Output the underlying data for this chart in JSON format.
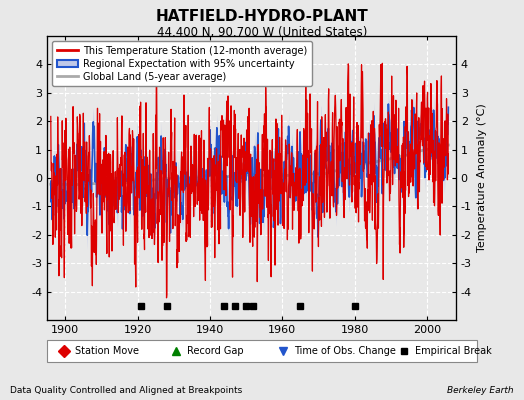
{
  "title": "HATFIELD-HYDRO-PLANT",
  "subtitle": "44.400 N, 90.700 W (United States)",
  "ylabel": "Temperature Anomaly (°C)",
  "xlabel_note": "Data Quality Controlled and Aligned at Breakpoints",
  "credit": "Berkeley Earth",
  "ylim": [
    -5,
    5
  ],
  "xlim": [
    1895,
    2008
  ],
  "xticks": [
    1900,
    1920,
    1940,
    1960,
    1980,
    2000
  ],
  "yticks": [
    -4,
    -3,
    -2,
    -1,
    0,
    1,
    2,
    3,
    4
  ],
  "bg_color": "#e8e8e8",
  "plot_bg_color": "#e8e8e8",
  "red_color": "#dd0000",
  "blue_color": "#2255cc",
  "shade_color": "#c0c8e8",
  "gray_color": "#aaaaaa",
  "grid_color": "#ffffff",
  "empirical_breaks": [
    1921,
    1928,
    1944,
    1947,
    1950,
    1952,
    1965,
    1980
  ],
  "station_moves": [],
  "record_gaps": [],
  "obs_changes": []
}
